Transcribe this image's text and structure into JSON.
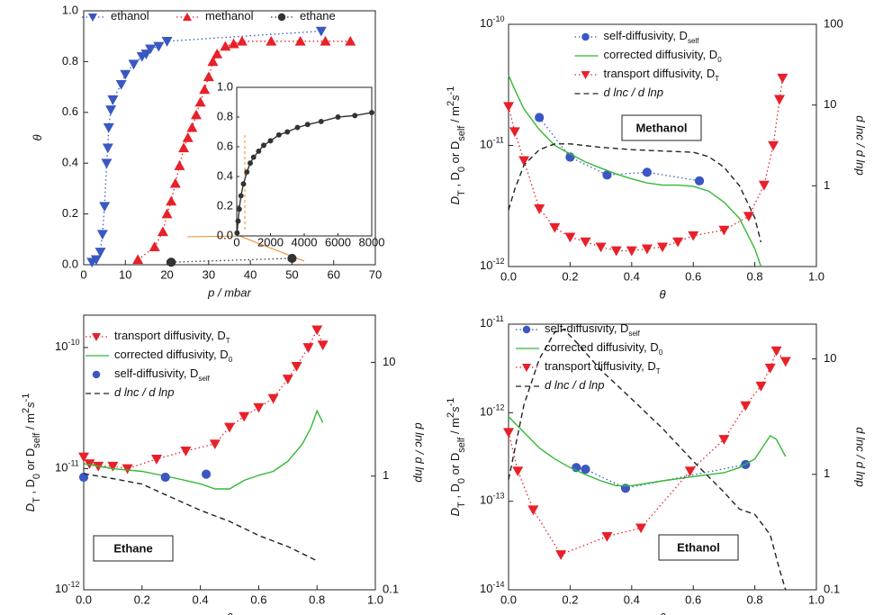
{
  "chart_data": [
    {
      "type": "scatter",
      "xlabel": "p / mbar",
      "ylabel": [
        {
          "text": "θ"
        }
      ],
      "xlim": [
        0,
        70
      ],
      "xticks": [
        0,
        10,
        20,
        30,
        40,
        50,
        60,
        70
      ],
      "ylim": [
        0,
        1
      ],
      "yticks": [
        {
          "value": 0,
          "label": "0.0"
        },
        0.2,
        0.4,
        0.6,
        0.8,
        {
          "value": 1,
          "label": "1.0"
        }
      ],
      "legend": "top row",
      "series": [
        {
          "name": "ethanol",
          "color": "#3a57c4",
          "marker": "triangle-down",
          "line": "dotted",
          "x": [
            2,
            3,
            4,
            4.5,
            5,
            5.5,
            5.8,
            6,
            6.5,
            7,
            9,
            10,
            12,
            14,
            15,
            16,
            18,
            20,
            57
          ],
          "values": [
            0.01,
            0.02,
            0.05,
            0.12,
            0.23,
            0.4,
            0.46,
            0.54,
            0.61,
            0.65,
            0.71,
            0.75,
            0.79,
            0.82,
            0.83,
            0.85,
            0.86,
            0.88,
            0.92
          ]
        },
        {
          "name": "methanol",
          "color": "#e8202a",
          "marker": "triangle-up",
          "line": "dotted",
          "x": [
            13,
            17,
            19,
            20,
            21,
            22,
            23,
            24,
            25,
            26,
            27,
            28,
            29,
            30,
            31,
            32,
            34,
            36,
            38,
            45,
            52,
            58,
            64
          ],
          "values": [
            0.02,
            0.07,
            0.13,
            0.2,
            0.25,
            0.32,
            0.39,
            0.46,
            0.5,
            0.54,
            0.59,
            0.64,
            0.69,
            0.74,
            0.8,
            0.83,
            0.86,
            0.87,
            0.88,
            0.88,
            0.88,
            0.88,
            0.88
          ]
        },
        {
          "name": "ethane",
          "color": "#333333",
          "marker": "circle",
          "line": "dotted",
          "x": [
            21,
            50
          ],
          "values": [
            0.01,
            0.025
          ]
        }
      ]
    },
    {
      "type": "scatter",
      "xlim": [
        0,
        8000
      ],
      "xticks": [
        0,
        2000,
        4000,
        6000,
        8000
      ],
      "ylim": [
        0,
        1
      ],
      "yticks": [
        {
          "value": 0,
          "label": "0.0"
        },
        0.2,
        0.4,
        0.6,
        0.8,
        {
          "value": 1,
          "label": "1.0"
        }
      ],
      "series": [
        {
          "color": "#333333",
          "marker": "circle",
          "line": "solid",
          "x": [
            20,
            80,
            150,
            250,
            400,
            600,
            800,
            1000,
            1300,
            1600,
            2000,
            2500,
            3000,
            3600,
            4200,
            5000,
            6000,
            7000,
            8000
          ],
          "values": [
            0.02,
            0.1,
            0.18,
            0.27,
            0.35,
            0.43,
            0.49,
            0.53,
            0.57,
            0.61,
            0.64,
            0.68,
            0.7,
            0.73,
            0.75,
            0.77,
            0.8,
            0.81,
            0.83
          ]
        }
      ]
    },
    {
      "type": "line",
      "annotation": "Methanol",
      "xlabel": "θ",
      "y2label": "d lnc / d lnp",
      "ylabel": [
        {
          "text": "D"
        },
        {
          "text": "T",
          "pos": "sub"
        },
        {
          "text": " , D"
        },
        {
          "text": "0",
          "pos": "sub"
        },
        {
          "text": " or D"
        },
        {
          "text": "self",
          "pos": "sub"
        },
        {
          "text": " / m"
        },
        {
          "text": "2",
          "pos": "super"
        },
        {
          "text": "s"
        },
        {
          "text": "-1",
          "pos": "super"
        }
      ],
      "xlim": [
        0,
        1
      ],
      "xticks": [
        {
          "value": 0,
          "label": "0.0"
        },
        0.2,
        0.4,
        0.6,
        0.8,
        {
          "value": 1,
          "label": "1.0"
        }
      ],
      "yscale": "log",
      "ylim": [
        1e-12,
        1e-10
      ],
      "yticks": [
        {
          "value": 1e-12,
          "label": "10",
          "exponent": "-12"
        },
        {
          "value": 1e-11,
          "label": "10",
          "exponent": "-11"
        },
        {
          "value": 1e-10,
          "label": "10",
          "exponent": "-10"
        }
      ],
      "y2scale": "log",
      "y2lim": [
        0.1,
        100
      ],
      "y2ticks": [
        1,
        10,
        100
      ],
      "legend": "upper center",
      "series": [
        {
          "name": "self-diffusivity, D",
          "name_sub": "self",
          "color": "#3a57c4",
          "marker": "circle",
          "line": "dotted",
          "x": [
            0.1,
            0.2,
            0.32,
            0.45,
            0.62
          ],
          "values": [
            1.7e-11,
            8e-12,
            5.7e-12,
            6e-12,
            5.1e-12
          ]
        },
        {
          "name": "corrected diffusivity, D",
          "name_sub": "0",
          "color": "#33b833",
          "marker": "none",
          "line": "solid",
          "x": [
            0,
            0.02,
            0.05,
            0.1,
            0.15,
            0.2,
            0.25,
            0.3,
            0.35,
            0.4,
            0.45,
            0.5,
            0.55,
            0.6,
            0.65,
            0.7,
            0.75,
            0.8,
            0.82
          ],
          "values": [
            3.8e-11,
            2.9e-11,
            2e-11,
            1.35e-11,
            1e-11,
            8.5e-12,
            7.3e-12,
            6.5e-12,
            5.8e-12,
            5.3e-12,
            4.9e-12,
            4.7e-12,
            4.7e-12,
            4.6e-12,
            4.2e-12,
            3.4e-12,
            2.5e-12,
            1.4e-12,
            1e-12
          ]
        },
        {
          "name": "transport diffusivity, D",
          "name_sub": "T",
          "color": "#e8202a",
          "marker": "triangle-down",
          "line": "dotted",
          "x": [
            0,
            0.02,
            0.05,
            0.1,
            0.15,
            0.2,
            0.25,
            0.3,
            0.35,
            0.4,
            0.45,
            0.5,
            0.55,
            0.6,
            0.7,
            0.78,
            0.83,
            0.86,
            0.88,
            0.89
          ],
          "values": [
            2.1e-11,
            1.3e-11,
            7.5e-12,
            3e-12,
            2.1e-12,
            1.75e-12,
            1.6e-12,
            1.45e-12,
            1.35e-12,
            1.35e-12,
            1.4e-12,
            1.45e-12,
            1.6e-12,
            1.8e-12,
            2e-12,
            2.6e-12,
            4.7e-12,
            1e-11,
            2.4e-11,
            3.6e-11
          ]
        },
        {
          "name": "d lnc / d lnp",
          "color": "#222222",
          "marker": "none",
          "line": "dashed",
          "axis": "y2",
          "x": [
            0,
            0.02,
            0.05,
            0.1,
            0.15,
            0.2,
            0.3,
            0.4,
            0.5,
            0.6,
            0.65,
            0.7,
            0.75,
            0.8,
            0.82
          ],
          "values": [
            0.5,
            0.9,
            1.8,
            2.8,
            3.3,
            3.3,
            3,
            2.8,
            2.7,
            2.6,
            2.3,
            1.7,
            1,
            0.4,
            0.2
          ]
        }
      ]
    },
    {
      "type": "line",
      "annotation": "Ethane",
      "xlabel": "θ",
      "y2label": "d lnc / d lnp",
      "ylabel": [
        {
          "text": "D"
        },
        {
          "text": "T",
          "pos": "sub"
        },
        {
          "text": " , D"
        },
        {
          "text": "0",
          "pos": "sub"
        },
        {
          "text": " or D"
        },
        {
          "text": "self",
          "pos": "sub"
        },
        {
          "text": " / m"
        },
        {
          "text": "2",
          "pos": "super"
        },
        {
          "text": "s"
        },
        {
          "text": "-1",
          "pos": "super"
        }
      ],
      "xlim": [
        0,
        1
      ],
      "xticks": [
        {
          "value": 0,
          "label": "0.0"
        },
        0.2,
        0.4,
        0.6,
        0.8,
        {
          "value": 1,
          "label": "1.0"
        }
      ],
      "yscale": "log",
      "ylim": [
        1e-12,
        1.85e-10
      ],
      "yticks": [
        {
          "value": 1e-12,
          "label": "10",
          "exponent": "-12"
        },
        {
          "value": 1e-11,
          "label": "10",
          "exponent": "-11"
        },
        {
          "value": 1e-10,
          "label": "10",
          "exponent": "-10"
        }
      ],
      "y2scale": "log",
      "y2lim": [
        0.1,
        26
      ],
      "y2ticks": [
        0.1,
        1,
        10
      ],
      "legend": "upper left",
      "series": [
        {
          "name": "transport diffusivity, D",
          "name_sub": "T",
          "color": "#e8202a",
          "marker": "triangle-down",
          "line": "dotted",
          "x": [
            0,
            0.02,
            0.05,
            0.1,
            0.15,
            0.25,
            0.35,
            0.45,
            0.5,
            0.55,
            0.6,
            0.65,
            0.7,
            0.73,
            0.77,
            0.8,
            0.82
          ],
          "values": [
            1.25e-11,
            1.1e-11,
            1.05e-11,
            1.05e-11,
            1e-11,
            1.2e-11,
            1.4e-11,
            1.6e-11,
            2.2e-11,
            2.7e-11,
            3.2e-11,
            3.8e-11,
            5.5e-11,
            7e-11,
            1e-10,
            1.4e-10,
            1.05e-10
          ]
        },
        {
          "name": "corrected diffusivity, D",
          "name_sub": "0",
          "color": "#33b833",
          "marker": "none",
          "line": "solid",
          "x": [
            0,
            0.1,
            0.2,
            0.3,
            0.4,
            0.45,
            0.5,
            0.55,
            0.6,
            0.65,
            0.7,
            0.75,
            0.78,
            0.8,
            0.82
          ],
          "values": [
            1.1e-11,
            1e-11,
            9.5e-12,
            8.5e-12,
            7.5e-12,
            6.8e-12,
            6.8e-12,
            8e-12,
            8.8e-12,
            9.5e-12,
            1.15e-11,
            1.6e-11,
            2.2e-11,
            3e-11,
            2.4e-11
          ]
        },
        {
          "name": "self-diffusivity, D",
          "name_sub": "self",
          "color": "#3a57c4",
          "marker": "circle",
          "line": "none",
          "x": [
            0,
            0.28,
            0.42
          ],
          "values": [
            8.5e-12,
            8.5e-12,
            9e-12
          ]
        },
        {
          "name": "d lnc / d lnp",
          "color": "#222222",
          "marker": "none",
          "line": "dashed",
          "axis": "y2",
          "x": [
            0,
            0.1,
            0.2,
            0.3,
            0.4,
            0.5,
            0.6,
            0.7,
            0.8
          ],
          "values": [
            1.05,
            0.95,
            0.85,
            0.65,
            0.5,
            0.4,
            0.3,
            0.24,
            0.18
          ]
        }
      ]
    },
    {
      "type": "line",
      "annotation": "Ethanol",
      "xlabel": "θ",
      "y2label": "d lnc / d lnp",
      "ylabel": [
        {
          "text": "D"
        },
        {
          "text": "T",
          "pos": "sub"
        },
        {
          "text": " , D"
        },
        {
          "text": "0",
          "pos": "sub"
        },
        {
          "text": " or D"
        },
        {
          "text": "self",
          "pos": "sub"
        },
        {
          "text": " / m"
        },
        {
          "text": "2",
          "pos": "super"
        },
        {
          "text": "s"
        },
        {
          "text": "-1",
          "pos": "super"
        }
      ],
      "xlim": [
        0,
        1
      ],
      "xticks": [
        {
          "value": 0,
          "label": "0.0"
        },
        0.2,
        0.4,
        0.6,
        0.8,
        {
          "value": 1,
          "label": "1.0"
        }
      ],
      "yscale": "log",
      "ylim": [
        1e-14,
        1e-11
      ],
      "yticks": [
        {
          "value": 1e-14,
          "label": "10",
          "exponent": "-14"
        },
        {
          "value": 1e-13,
          "label": "10",
          "exponent": "-13"
        },
        {
          "value": 1e-12,
          "label": "10",
          "exponent": "-12"
        },
        {
          "value": 1e-11,
          "label": "10",
          "exponent": "-11"
        }
      ],
      "y2scale": "log",
      "y2lim": [
        0.1,
        20
      ],
      "y2ticks": [
        0.1,
        1,
        10
      ],
      "legend": "upper left",
      "series": [
        {
          "name": "self-diffusivity, D",
          "name_sub": "self",
          "color": "#3a57c4",
          "marker": "circle",
          "line": "dotted",
          "x": [
            0.22,
            0.25,
            0.38,
            0.77
          ],
          "values": [
            2.4e-13,
            2.3e-13,
            1.4e-13,
            2.6e-13
          ]
        },
        {
          "name": "corrected diffusivity, D",
          "name_sub": "0",
          "color": "#33b833",
          "marker": "none",
          "line": "solid",
          "x": [
            0,
            0.05,
            0.1,
            0.15,
            0.2,
            0.25,
            0.3,
            0.35,
            0.4,
            0.5,
            0.6,
            0.7,
            0.75,
            0.8,
            0.85,
            0.87,
            0.9
          ],
          "values": [
            9e-13,
            6e-13,
            4e-13,
            3e-13,
            2.4e-13,
            2e-13,
            1.7e-13,
            1.5e-13,
            1.5e-13,
            1.7e-13,
            1.9e-13,
            2.1e-13,
            2.4e-13,
            3e-13,
            5.5e-13,
            5e-13,
            3.2e-13
          ]
        },
        {
          "name": "transport diffusivity, D",
          "name_sub": "T",
          "color": "#e8202a",
          "marker": "triangle-down",
          "line": "dotted",
          "x": [
            0,
            0.03,
            0.08,
            0.17,
            0.32,
            0.43,
            0.59,
            0.7,
            0.77,
            0.82,
            0.85,
            0.87,
            0.9
          ],
          "values": [
            6e-13,
            2.2e-13,
            8e-14,
            2.5e-14,
            4e-14,
            5e-14,
            2.2e-13,
            5e-13,
            1.2e-12,
            2e-12,
            3.2e-12,
            5e-12,
            3.8e-12
          ]
        },
        {
          "name": "d lnc / d lnp",
          "color": "#222222",
          "marker": "none",
          "line": "dashed",
          "axis": "y2",
          "x": [
            0,
            0.05,
            0.1,
            0.15,
            0.18,
            0.22,
            0.3,
            0.4,
            0.5,
            0.6,
            0.7,
            0.75,
            0.8,
            0.85,
            0.88,
            0.9
          ],
          "values": [
            0.9,
            4,
            10,
            17,
            18,
            14,
            8,
            4.5,
            2.5,
            1.3,
            0.7,
            0.5,
            0.45,
            0.3,
            0.15,
            0.1
          ]
        }
      ]
    }
  ]
}
